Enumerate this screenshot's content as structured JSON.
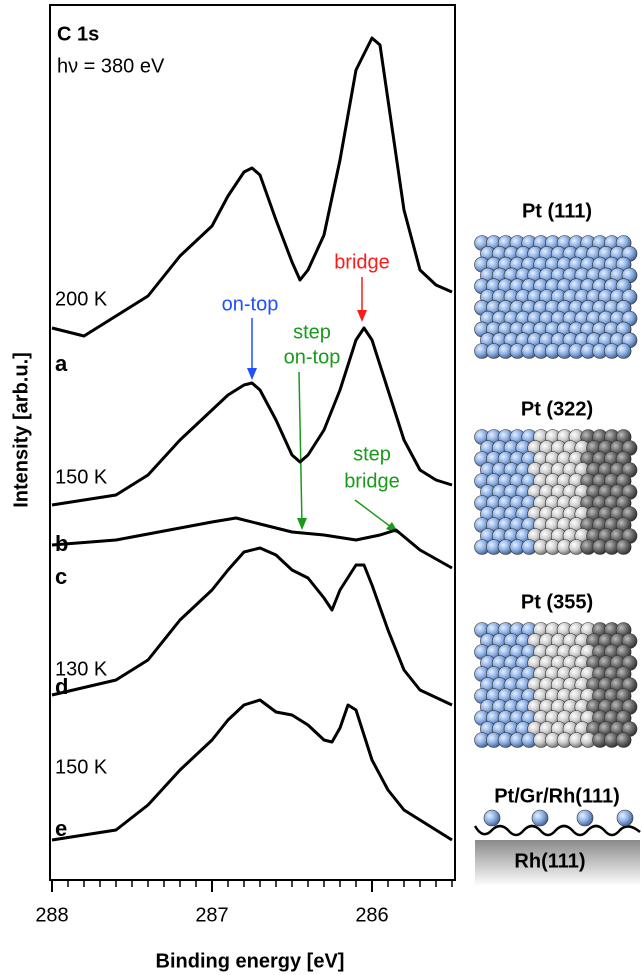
{
  "chart_data": {
    "type": "line",
    "title": "C 1s",
    "subtitle": "hν = 380 eV",
    "x_label": "Binding energy [eV]",
    "y_label": "Intensity [arb.u.]",
    "xlim": [
      288,
      285.5
    ],
    "ylim": [
      0,
      87.5
    ],
    "xticks": [
      288,
      287,
      286
    ],
    "xminorticks": [
      287.9,
      287.8,
      287.7,
      287.6,
      287.5,
      287.4,
      287.3,
      287.2,
      287.1,
      286.9,
      286.8,
      286.7,
      286.6,
      286.5,
      286.4,
      286.3,
      286.2,
      286.1,
      285.9,
      285.8,
      285.7,
      285.6,
      285.5
    ],
    "series": [
      {
        "name": "a",
        "color": "#000000",
        "x": [
          288,
          287.8,
          287.6,
          287.4,
          287.2,
          287.0,
          286.9,
          286.8,
          286.75,
          286.7,
          286.6,
          286.5,
          286.45,
          286.4,
          286.3,
          286.2,
          286.1,
          286.0,
          285.95,
          285.9,
          285.8,
          285.7,
          285.6,
          285.5
        ],
        "values": [
          55.2,
          54.4,
          56.4,
          58.4,
          62.4,
          65.4,
          68.4,
          70.8,
          71.2,
          70.5,
          66.0,
          61.8,
          60.0,
          61.0,
          64.5,
          72.0,
          81.0,
          84.2,
          83.5,
          78.0,
          67.0,
          61.0,
          59.5,
          58.8
        ]
      },
      {
        "name": "b",
        "color": "#000000",
        "x": [
          288,
          287.6,
          287.4,
          287.2,
          287.0,
          286.9,
          286.8,
          286.75,
          286.7,
          286.6,
          286.5,
          286.45,
          286.4,
          286.3,
          286.2,
          286.1,
          286.05,
          286.0,
          285.9,
          285.8,
          285.7,
          285.6,
          285.5
        ],
        "values": [
          37.5,
          38.5,
          40.5,
          44.0,
          47.0,
          48.5,
          49.5,
          49.7,
          49.0,
          46.0,
          42.5,
          41.8,
          42.5,
          45.0,
          49.0,
          54.0,
          55.2,
          54.0,
          49.0,
          44.0,
          41.0,
          40.0,
          39.5
        ]
      },
      {
        "name": "c",
        "color": "#000000",
        "x": [
          288,
          287.6,
          287.2,
          287.0,
          286.85,
          286.7,
          286.5,
          286.3,
          286.1,
          285.95,
          285.85,
          285.7,
          285.5
        ],
        "values": [
          33.5,
          34.0,
          35.2,
          35.8,
          36.2,
          35.6,
          34.8,
          34.5,
          34.0,
          34.5,
          35.0,
          33.0,
          31.2
        ]
      },
      {
        "name": "d",
        "color": "#000000",
        "x": [
          288,
          287.6,
          287.4,
          287.2,
          287.0,
          286.9,
          286.8,
          286.7,
          286.6,
          286.5,
          286.4,
          286.3,
          286.25,
          286.2,
          286.1,
          286.05,
          286.0,
          285.9,
          285.8,
          285.7,
          285.5
        ],
        "values": [
          18.5,
          20.0,
          22.0,
          26.0,
          29.0,
          31.0,
          32.8,
          33.2,
          32.5,
          31.0,
          30.2,
          28.2,
          27.0,
          29.0,
          31.5,
          31.5,
          29.5,
          25.0,
          21.0,
          19.0,
          17.5
        ]
      },
      {
        "name": "e",
        "color": "#000000",
        "x": [
          288,
          287.6,
          287.4,
          287.2,
          287.0,
          286.9,
          286.8,
          286.7,
          286.6,
          286.5,
          286.4,
          286.3,
          286.25,
          286.2,
          286.15,
          286.1,
          286.0,
          285.9,
          285.8,
          285.7,
          285.6,
          285.5
        ],
        "values": [
          4.0,
          5.0,
          7.5,
          11.0,
          14.0,
          16.0,
          17.5,
          18.0,
          16.8,
          16.5,
          15.5,
          14.0,
          13.8,
          15.2,
          17.5,
          17.0,
          12.0,
          9.0,
          7.0,
          6.0,
          5.0,
          4.0
        ]
      }
    ],
    "temperatures": [
      "200 K",
      "150 K",
      "130 K",
      "150 K"
    ],
    "annotations": [
      {
        "lines": [
          "on-top"
        ],
        "color": "#1f4fff"
      },
      {
        "lines": [
          "bridge"
        ],
        "color": "#ff1a1a"
      },
      {
        "lines": [
          "step",
          "on-top"
        ],
        "color": "#1a9a1a"
      },
      {
        "lines": [
          "step",
          "bridge"
        ],
        "color": "#1a9a1a"
      }
    ],
    "models": [
      "Pt (111)",
      "Pt (322)",
      "Pt (355)",
      "Pt/Gr/Rh(111)"
    ],
    "substrate": "Rh(111)"
  }
}
